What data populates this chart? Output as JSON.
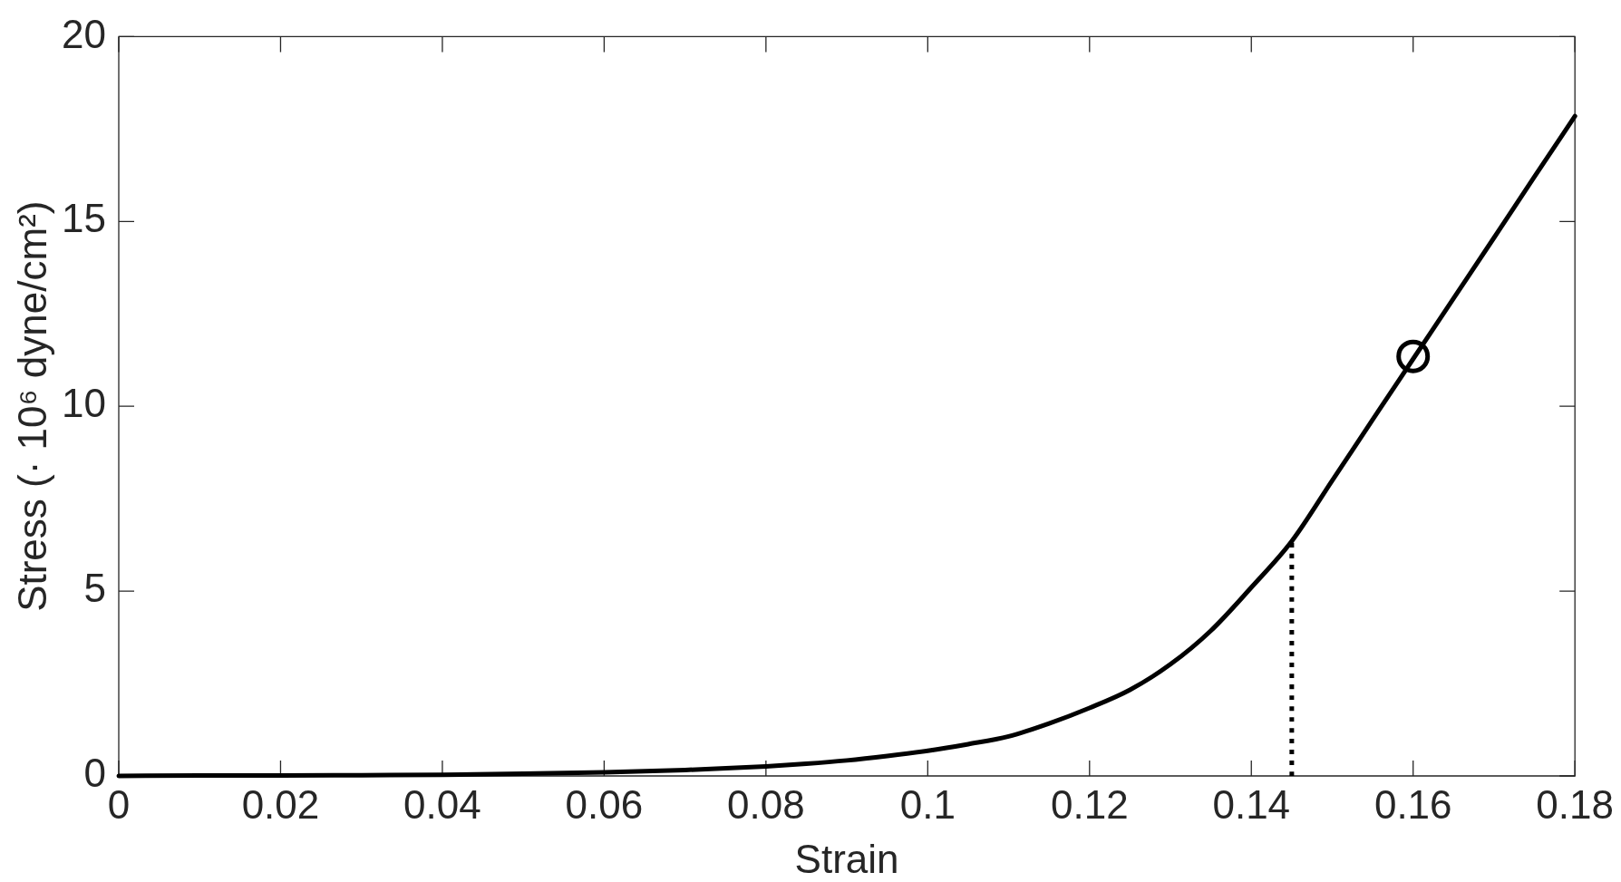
{
  "chart_data": {
    "type": "line",
    "xlabel": "Strain",
    "ylabel": "Stress (· 10⁶ dyne/cm²)",
    "xlim": [
      0,
      0.18
    ],
    "xticks": [
      0,
      0.02,
      0.04,
      0.06,
      0.08,
      0.1,
      0.12,
      0.14,
      0.16,
      0.18
    ],
    "ylim": [
      0,
      20
    ],
    "yticks": [
      0,
      5,
      10,
      15,
      20
    ],
    "series": [
      {
        "color": "#000000",
        "x": [
          0,
          0.01,
          0.02,
          0.03,
          0.04,
          0.05,
          0.06,
          0.07,
          0.08,
          0.085,
          0.09,
          0.095,
          0.1,
          0.105,
          0.11,
          0.115,
          0.12,
          0.125,
          0.13,
          0.135,
          0.14,
          0.145,
          0.15,
          0.155,
          0.16,
          0.165,
          0.17,
          0.175,
          0.18
        ],
        "values": [
          0,
          0.01,
          0.01,
          0.02,
          0.03,
          0.06,
          0.1,
          0.16,
          0.26,
          0.33,
          0.42,
          0.54,
          0.68,
          0.86,
          1.07,
          1.42,
          1.84,
          2.33,
          3.02,
          3.93,
          5.1,
          6.35,
          7.99,
          9.64,
          11.28,
          12.92,
          14.56,
          16.21,
          17.85
        ]
      },
      {
        "type": "line",
        "line_style": "dotted",
        "color": "#000000",
        "x": [
          0.145,
          0.145
        ],
        "values": [
          0,
          6.35
        ]
      },
      {
        "type": "scatter",
        "marker": "circle",
        "color": "#000000",
        "x": [
          0.16
        ],
        "values": [
          11.35
        ]
      }
    ]
  }
}
